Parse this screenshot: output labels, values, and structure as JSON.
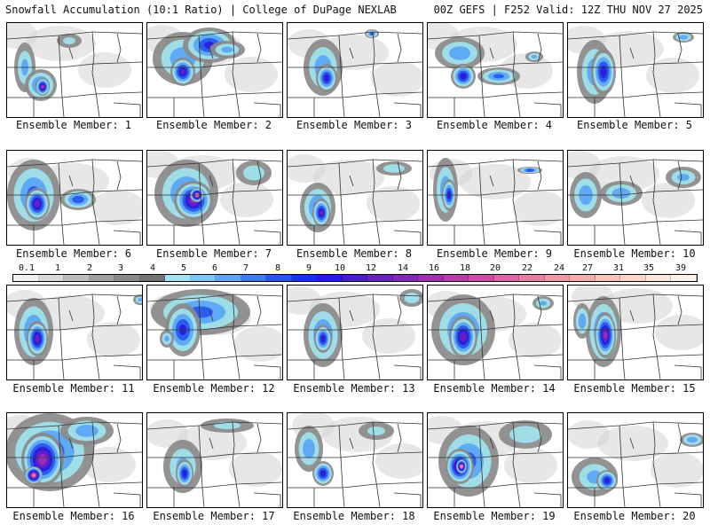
{
  "header": {
    "left_title": "Snowfall Accumulation (10:1 Ratio) | College of DuPage NEXLAB",
    "right_title": "00Z GEFS | F252 Valid: 12Z THU NOV 27 2025"
  },
  "colorbar": {
    "labels": [
      "0.1",
      "1",
      "2",
      "3",
      "4",
      "5",
      "6",
      "7",
      "8",
      "9",
      "10",
      "12",
      "14",
      "16",
      "18",
      "20",
      "22",
      "24",
      "27",
      "31",
      "35",
      "39"
    ],
    "colors": [
      "#f0f0f0",
      "#d8d8d8",
      "#bcbcbc",
      "#a0a0a0",
      "#8a8a8a",
      "#737373",
      "#9fe3ee",
      "#7ec6f7",
      "#5aa5f5",
      "#3d7df2",
      "#2656ee",
      "#1733e0",
      "#2a1bd8",
      "#4b1ecc",
      "#6a22c3",
      "#8527b8",
      "#a22fb3",
      "#bb3aad",
      "#cf4ba8",
      "#de62a6",
      "#e97ca5",
      "#f196a6",
      "#f5adab",
      "#f7c3b6",
      "#f9d6c6",
      "#fbe6db",
      "#fdf2ec"
    ]
  },
  "panels": [
    {
      "label": "Ensemble Member: 1"
    },
    {
      "label": "Ensemble Member: 2"
    },
    {
      "label": "Ensemble Member: 3"
    },
    {
      "label": "Ensemble Member: 4"
    },
    {
      "label": "Ensemble Member: 5"
    },
    {
      "label": "Ensemble Member: 6"
    },
    {
      "label": "Ensemble Member: 7"
    },
    {
      "label": "Ensemble Member: 8"
    },
    {
      "label": "Ensemble Member: 9"
    },
    {
      "label": "Ensemble Member: 10"
    },
    {
      "label": "Ensemble Member: 11"
    },
    {
      "label": "Ensemble Member: 12"
    },
    {
      "label": "Ensemble Member: 13"
    },
    {
      "label": "Ensemble Member: 14"
    },
    {
      "label": "Ensemble Member: 15"
    },
    {
      "label": "Ensemble Member: 16"
    },
    {
      "label": "Ensemble Member: 17"
    },
    {
      "label": "Ensemble Member: 18"
    },
    {
      "label": "Ensemble Member: 19"
    },
    {
      "label": "Ensemble Member: 20"
    }
  ]
}
